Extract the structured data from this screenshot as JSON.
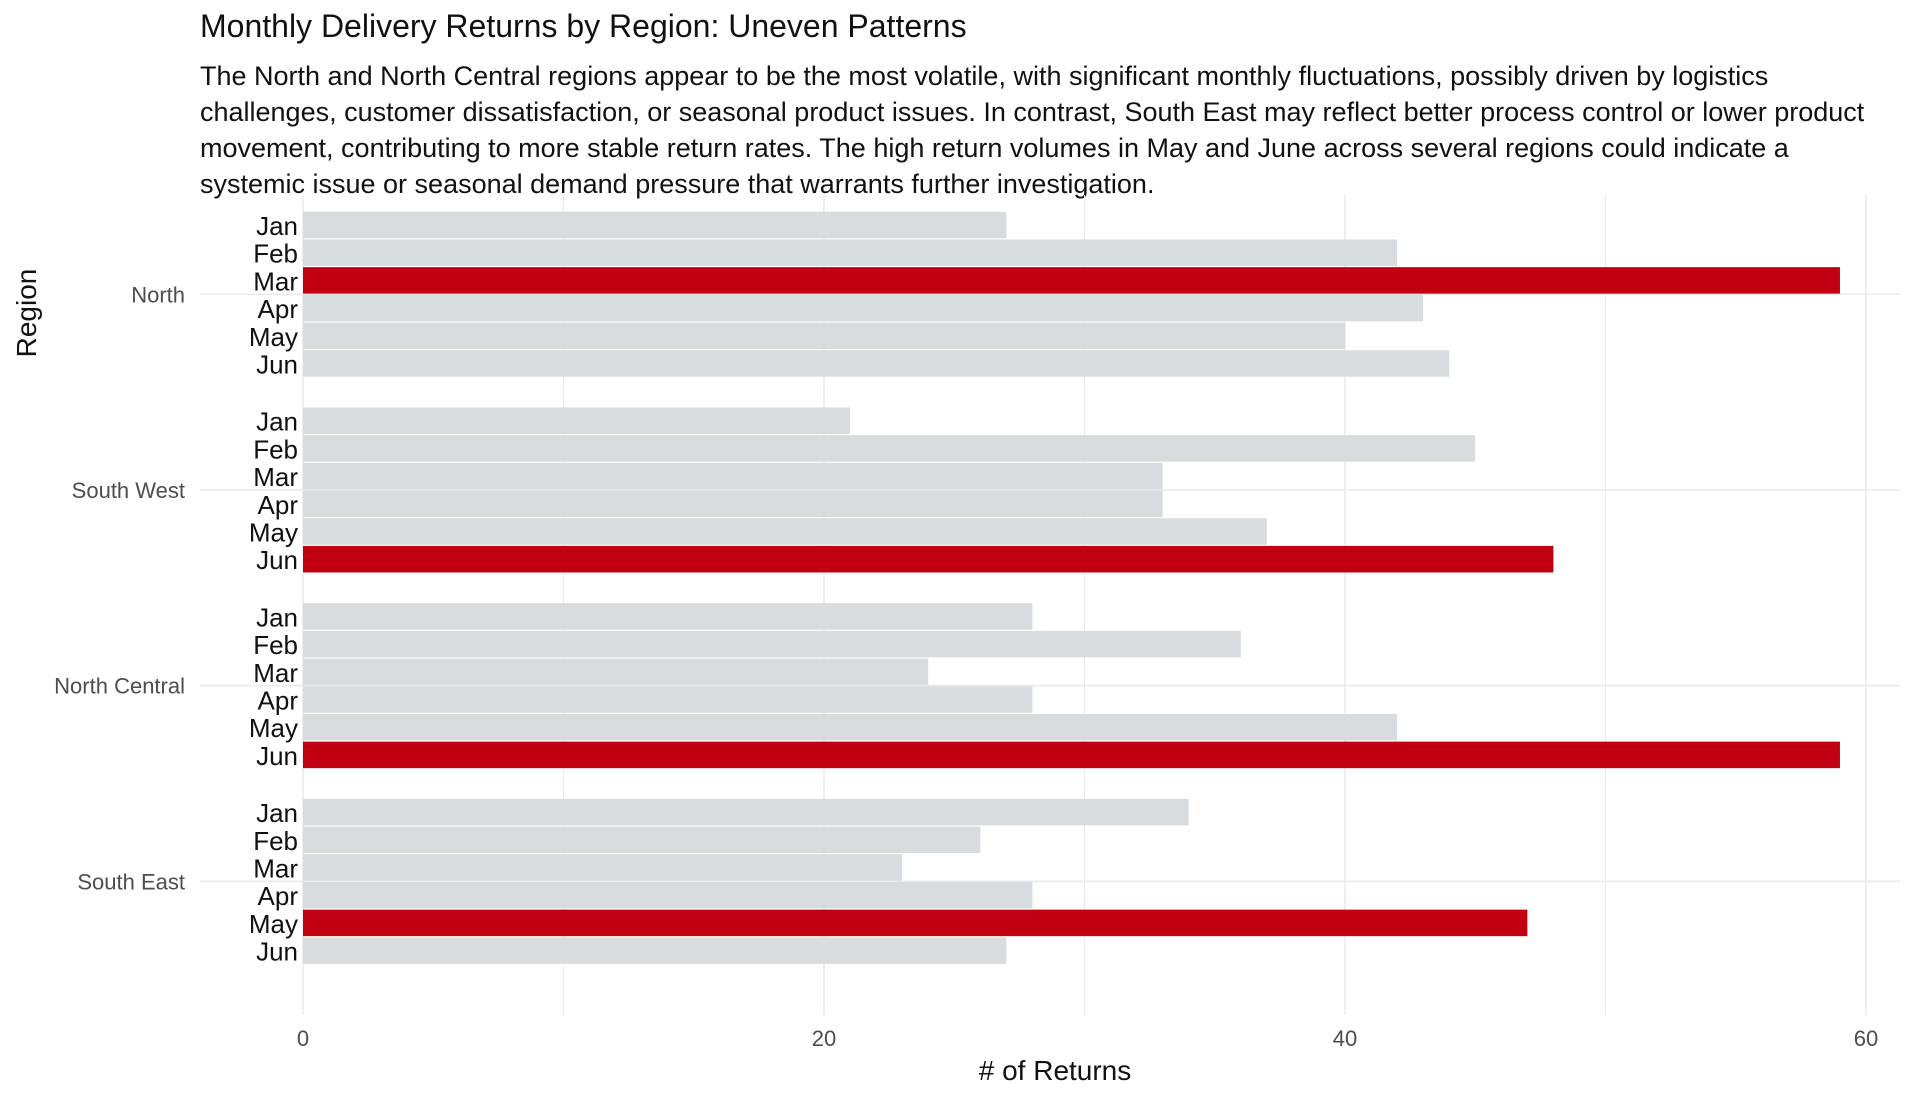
{
  "chart_data": {
    "type": "bar",
    "orientation": "horizontal",
    "title": "Monthly Delivery Returns by Region: Uneven Patterns",
    "subtitle": "The North and North Central regions appear to be the most volatile, with significant monthly fluctuations, possibly driven by logistics challenges, customer dissatisfaction, or seasonal product issues. In contrast, South East may reflect better process control or lower product movement, contributing to more stable return rates. The high return volumes in May and June across several regions could indicate a systemic issue or seasonal demand pressure that warrants further investigation.",
    "xlabel": "# of Returns",
    "ylabel": "Region",
    "xlim": [
      0,
      62
    ],
    "x_ticks": [
      0,
      20,
      40,
      60
    ],
    "grid": true,
    "legend": "none",
    "colors": {
      "highlight": "#c00010",
      "base": "#d9dcdf",
      "grid": "#ebebeb",
      "text": "#111111",
      "axis_text": "#4d4d4d"
    },
    "groups": [
      {
        "region": "North",
        "bars": [
          {
            "month": "Jan",
            "value": 27
          },
          {
            "month": "Feb",
            "value": 42
          },
          {
            "month": "Mar",
            "value": 59,
            "highlight": true
          },
          {
            "month": "Apr",
            "value": 43
          },
          {
            "month": "May",
            "value": 40
          },
          {
            "month": "Jun",
            "value": 44
          }
        ]
      },
      {
        "region": "South West",
        "bars": [
          {
            "month": "Jan",
            "value": 21
          },
          {
            "month": "Feb",
            "value": 45
          },
          {
            "month": "Mar",
            "value": 33
          },
          {
            "month": "Apr",
            "value": 33
          },
          {
            "month": "May",
            "value": 37
          },
          {
            "month": "Jun",
            "value": 48,
            "highlight": true
          }
        ]
      },
      {
        "region": "North Central",
        "bars": [
          {
            "month": "Jan",
            "value": 28
          },
          {
            "month": "Feb",
            "value": 36
          },
          {
            "month": "Mar",
            "value": 24
          },
          {
            "month": "Apr",
            "value": 28
          },
          {
            "month": "May",
            "value": 42
          },
          {
            "month": "Jun",
            "value": 59,
            "highlight": true
          }
        ]
      },
      {
        "region": "South East",
        "bars": [
          {
            "month": "Jan",
            "value": 34
          },
          {
            "month": "Feb",
            "value": 26
          },
          {
            "month": "Mar",
            "value": 23
          },
          {
            "month": "Apr",
            "value": 28
          },
          {
            "month": "May",
            "value": 47,
            "highlight": true
          },
          {
            "month": "Jun",
            "value": 27
          }
        ]
      }
    ]
  }
}
